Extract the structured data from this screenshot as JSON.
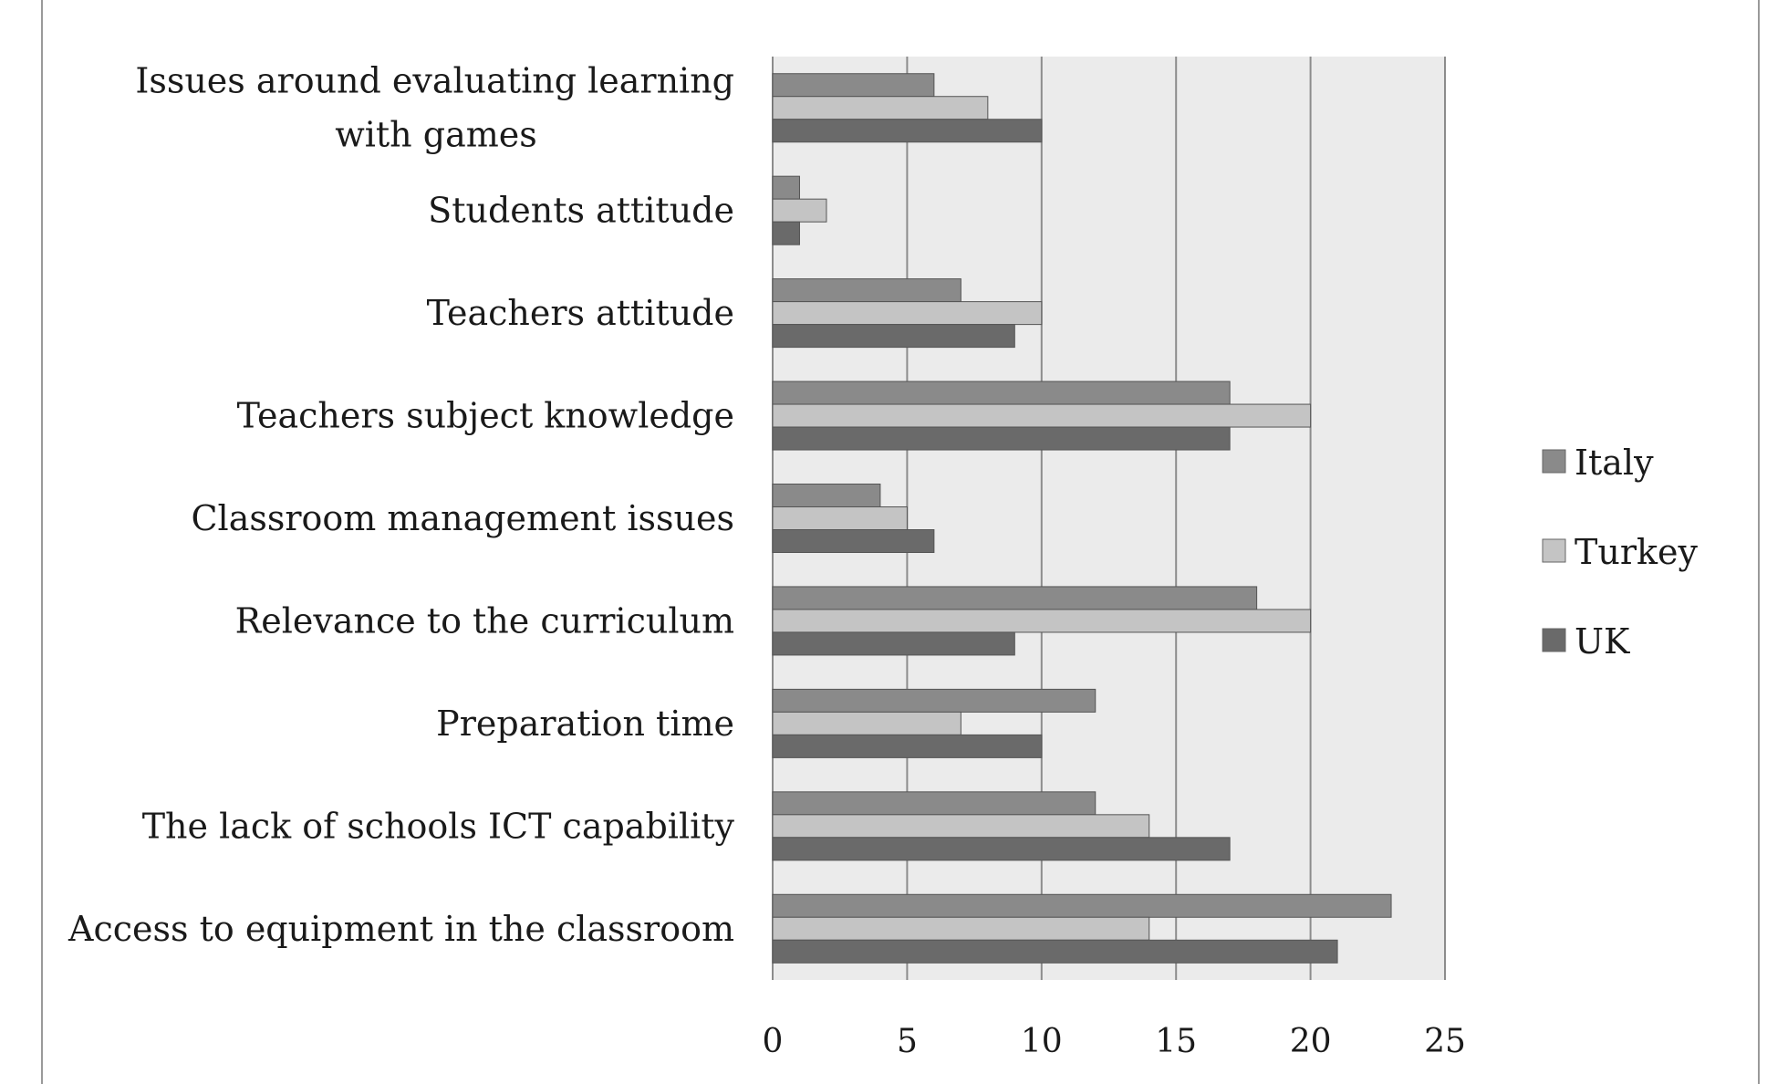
{
  "chart_data": {
    "type": "bar",
    "orientation": "horizontal",
    "title": "",
    "xlabel": "",
    "ylabel": "",
    "xlim": [
      0,
      25
    ],
    "xticks": [
      "0",
      "5",
      "10",
      "15",
      "20",
      "25"
    ],
    "grid": true,
    "legend_position": "right",
    "categories": [
      [
        "Issues around evaluating learning",
        "with games"
      ],
      [
        "Students attitude"
      ],
      [
        "Teachers attitude"
      ],
      [
        "Teachers subject knowledge"
      ],
      [
        "Classroom management issues"
      ],
      [
        "Relevance to the curriculum"
      ],
      [
        "Preparation time"
      ],
      [
        "The lack of schools ICT capability"
      ],
      [
        "Access to equipment in the classroom"
      ]
    ],
    "series": [
      {
        "name": "Italy",
        "color": "#8a8a8a",
        "values": [
          6,
          1,
          7,
          17,
          4,
          18,
          12,
          12,
          23
        ]
      },
      {
        "name": "Turkey",
        "color": "#c4c4c4",
        "values": [
          8,
          2,
          10,
          20,
          5,
          20,
          7,
          14,
          14
        ]
      },
      {
        "name": "UK",
        "color": "#6a6a6a",
        "values": [
          10,
          1,
          9,
          17,
          6,
          9,
          10,
          17,
          21
        ]
      }
    ],
    "plot_background": "#ebebeb"
  }
}
